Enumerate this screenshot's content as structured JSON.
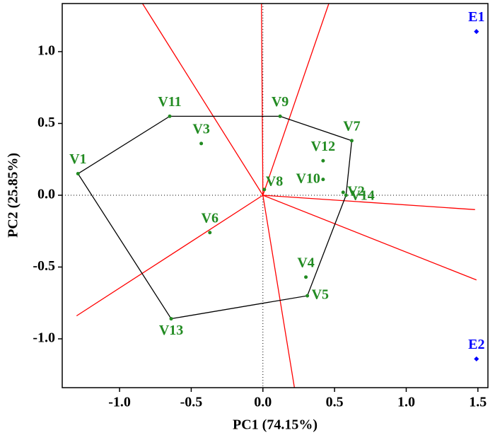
{
  "chart_data": {
    "type": "scatter",
    "xlabel": "PC1 (74.15%)",
    "ylabel": "PC2 (25.85%)",
    "xlim": [
      -1.4,
      1.57
    ],
    "ylim": [
      -1.34,
      1.335
    ],
    "xticks": [
      {
        "value": -1.0,
        "label": "-1.0"
      },
      {
        "value": -0.5,
        "label": "-0.5"
      },
      {
        "value": 0.0,
        "label": "0.0"
      },
      {
        "value": 0.5,
        "label": "0.5"
      },
      {
        "value": 1.0,
        "label": "1.0"
      },
      {
        "value": 1.5,
        "label": "1.5"
      }
    ],
    "yticks": [
      {
        "value": 1.0,
        "label": "1.0"
      },
      {
        "value": 0.5,
        "label": "0.5"
      },
      {
        "value": 0.0,
        "label": "0.0"
      },
      {
        "value": -0.5,
        "label": "-0.5"
      },
      {
        "value": -1.0,
        "label": "-1.0"
      }
    ],
    "series": [
      {
        "color": "#228b22",
        "hull": true,
        "labels": [
          "V1",
          "V11",
          "V3",
          "V9",
          "V7",
          "V12",
          "V10",
          "V2",
          "V14",
          "V8",
          "V6",
          "V4",
          "V5",
          "V13"
        ],
        "x": [
          -1.29,
          -0.65,
          -0.43,
          0.12,
          0.62,
          0.42,
          0.42,
          0.56,
          0.58,
          0.01,
          -0.37,
          0.3,
          0.31,
          -0.64
        ],
        "y": [
          0.15,
          0.55,
          0.36,
          0.55,
          0.38,
          0.24,
          0.11,
          0.02,
          0.0,
          0.04,
          -0.26,
          -0.57,
          -0.7,
          -0.86
        ]
      },
      {
        "color": "#0000ff",
        "hull": false,
        "labels": [
          "E1",
          "E2"
        ],
        "x": [
          1.49,
          1.49
        ],
        "y": [
          1.14,
          -1.14
        ]
      }
    ],
    "vectors": {
      "color": "#ff0000",
      "x": [
        -0.84,
        -0.01,
        0.46,
        1.48,
        1.49,
        0.22,
        -1.3
      ],
      "y": [
        1.335,
        1.335,
        1.335,
        -0.1,
        -0.59,
        -1.34,
        -0.84
      ]
    }
  }
}
